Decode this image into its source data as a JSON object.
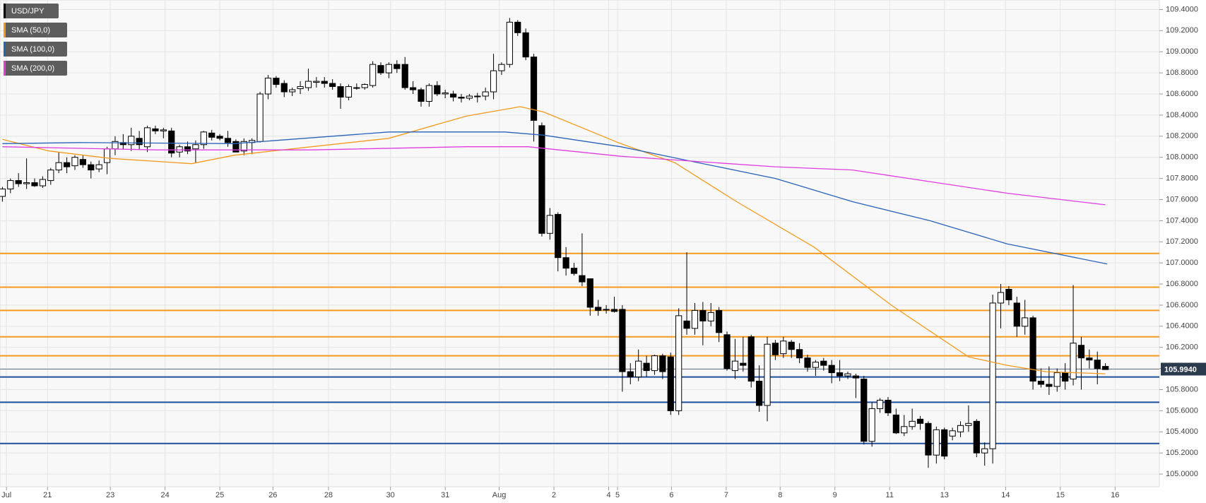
{
  "chart_data": {
    "type": "candlestick",
    "series": [
      {
        "name": "USD/JPY",
        "color": "#000000",
        "open": [
          107.63,
          107.7,
          107.78,
          107.75,
          107.76,
          107.73,
          107.78,
          107.88,
          107.95,
          107.92,
          107.98,
          107.93,
          107.89,
          107.95,
          108.08,
          108.14,
          108.12,
          108.18,
          108.1,
          108.27,
          108.25,
          108.25,
          108.05,
          108.1,
          108.08,
          108.12,
          108.23,
          108.2,
          108.18,
          108.15,
          108.06,
          108.14,
          108.15,
          108.6,
          108.75,
          108.7,
          108.62,
          108.65,
          108.66,
          108.71,
          108.72,
          108.7,
          108.67,
          108.57,
          108.66,
          108.66,
          108.68,
          108.87,
          108.8,
          108.88,
          108.88,
          108.66,
          108.64,
          108.53,
          108.68,
          108.6,
          108.6,
          108.57,
          108.56,
          108.58,
          108.58,
          108.62,
          108.82,
          108.88,
          109.28,
          109.18,
          108.95,
          108.3,
          107.28,
          107.46,
          107.05,
          106.95,
          106.88,
          106.85,
          106.58,
          106.56,
          106.56,
          106.56,
          105.97,
          105.92,
          106.05,
          105.98,
          106.12,
          106.11,
          105.6,
          106.45,
          106.38,
          106.55,
          106.45,
          106.55,
          106.32,
          105.98,
          106.05,
          106.3,
          105.88,
          105.65,
          106.24,
          106.14,
          106.25,
          106.18,
          106.1,
          106.01,
          106.07,
          106.03,
          105.96,
          105.93,
          105.93,
          105.9,
          105.31,
          105.62,
          105.7,
          105.56,
          105.39,
          105.45,
          105.52,
          105.48,
          105.18,
          105.42,
          105.36,
          105.4,
          105.46,
          105.5,
          105.2,
          105.24,
          106.62,
          106.75,
          106.62,
          106.4,
          106.48,
          105.88,
          105.85,
          105.83,
          105.96,
          105.9,
          106.22,
          106.1,
          106.08,
          106.02
        ],
        "high": [
          107.72,
          107.8,
          107.85,
          107.99,
          107.8,
          107.82,
          107.9,
          108.05,
          108.0,
          108.02,
          108.02,
          107.96,
          107.97,
          108.1,
          108.2,
          108.22,
          108.28,
          108.25,
          108.3,
          108.3,
          108.28,
          108.28,
          108.12,
          108.15,
          108.16,
          108.25,
          108.26,
          108.22,
          108.25,
          108.17,
          108.18,
          108.18,
          108.62,
          108.78,
          108.77,
          108.73,
          108.66,
          108.72,
          108.84,
          108.76,
          108.76,
          108.74,
          108.7,
          108.69,
          108.7,
          108.7,
          108.91,
          108.9,
          108.9,
          108.92,
          108.95,
          108.72,
          108.66,
          108.7,
          108.72,
          108.64,
          108.63,
          108.6,
          108.6,
          108.61,
          108.66,
          108.98,
          108.9,
          109.32,
          109.3,
          109.22,
          108.98,
          108.33,
          107.52,
          107.48,
          107.15,
          107.0,
          107.28,
          106.85,
          106.65,
          106.6,
          106.68,
          106.6,
          106.05,
          106.18,
          106.12,
          106.13,
          106.14,
          106.15,
          106.57,
          107.1,
          106.62,
          106.63,
          106.62,
          106.58,
          106.35,
          106.28,
          106.3,
          106.32,
          106.03,
          106.3,
          106.27,
          106.3,
          106.27,
          106.24,
          106.13,
          106.08,
          106.1,
          106.08,
          106.08,
          105.97,
          105.95,
          105.93,
          105.68,
          105.72,
          105.73,
          105.62,
          105.56,
          105.62,
          105.55,
          105.5,
          105.45,
          105.44,
          105.44,
          105.5,
          105.65,
          105.52,
          105.3,
          106.7,
          106.8,
          106.78,
          106.68,
          106.65,
          106.5,
          106.0,
          106.02,
          106.0,
          106.05,
          106.79,
          106.3,
          106.18,
          106.16,
          106.05
        ],
        "low": [
          107.58,
          107.66,
          107.72,
          107.7,
          107.72,
          107.71,
          107.74,
          107.85,
          107.85,
          107.88,
          107.9,
          107.8,
          107.86,
          107.84,
          108.02,
          108.08,
          108.06,
          108.07,
          108.05,
          108.22,
          108.18,
          108.0,
          108.0,
          108.03,
          107.95,
          108.08,
          108.16,
          108.16,
          108.1,
          108.05,
          108.02,
          108.03,
          108.14,
          108.55,
          108.66,
          108.57,
          108.58,
          108.6,
          108.63,
          108.66,
          108.66,
          108.64,
          108.46,
          108.54,
          108.64,
          108.64,
          108.66,
          108.78,
          108.75,
          108.8,
          108.64,
          108.6,
          108.48,
          108.48,
          108.58,
          108.56,
          108.53,
          108.52,
          108.54,
          108.52,
          108.54,
          108.55,
          108.78,
          108.85,
          109.15,
          108.92,
          108.15,
          107.25,
          107.22,
          106.92,
          106.88,
          106.88,
          106.78,
          106.5,
          106.5,
          106.52,
          106.53,
          105.78,
          105.85,
          105.88,
          105.92,
          105.94,
          105.9,
          105.56,
          105.56,
          106.32,
          106.32,
          106.22,
          106.4,
          106.25,
          105.98,
          105.9,
          105.97,
          105.82,
          105.59,
          105.5,
          106.08,
          106.1,
          106.1,
          106.05,
          105.97,
          105.93,
          105.98,
          105.86,
          105.88,
          105.9,
          105.72,
          105.28,
          105.26,
          105.58,
          105.55,
          105.38,
          105.36,
          105.42,
          105.42,
          105.06,
          105.1,
          105.14,
          105.32,
          105.35,
          105.4,
          105.16,
          105.08,
          105.1,
          106.38,
          106.6,
          106.3,
          106.32,
          105.8,
          105.82,
          105.75,
          105.78,
          105.8,
          105.84,
          105.8,
          106.0,
          105.85,
          105.99
        ],
        "close": [
          107.7,
          107.78,
          107.75,
          107.76,
          107.73,
          107.79,
          107.88,
          107.95,
          107.91,
          108.0,
          107.93,
          107.88,
          107.93,
          108.08,
          108.15,
          108.12,
          108.2,
          108.12,
          108.28,
          108.25,
          108.26,
          108.04,
          108.1,
          108.06,
          108.12,
          108.24,
          108.19,
          108.18,
          108.14,
          108.05,
          108.15,
          108.16,
          108.6,
          108.75,
          108.69,
          108.62,
          108.64,
          108.67,
          108.72,
          108.72,
          108.7,
          108.67,
          108.57,
          108.67,
          108.66,
          108.69,
          108.88,
          108.8,
          108.88,
          108.84,
          108.66,
          108.64,
          108.53,
          108.68,
          108.6,
          108.61,
          108.57,
          108.56,
          108.58,
          108.58,
          108.62,
          108.82,
          108.88,
          109.28,
          109.18,
          108.95,
          108.35,
          107.28,
          107.45,
          107.05,
          106.95,
          106.9,
          106.82,
          106.58,
          106.55,
          106.56,
          106.54,
          105.97,
          105.92,
          106.07,
          105.98,
          106.12,
          105.97,
          105.6,
          106.5,
          106.38,
          106.55,
          106.45,
          106.53,
          106.34,
          106.0,
          106.07,
          106.03,
          105.88,
          105.65,
          106.23,
          106.13,
          106.26,
          106.18,
          106.1,
          106.01,
          106.06,
          106.03,
          105.96,
          105.93,
          105.95,
          105.91,
          105.31,
          105.62,
          105.7,
          105.58,
          105.39,
          105.45,
          105.5,
          105.48,
          105.18,
          105.42,
          105.17,
          105.41,
          105.46,
          105.48,
          105.2,
          105.24,
          106.62,
          106.72,
          106.65,
          106.4,
          106.48,
          105.88,
          105.85,
          105.83,
          105.96,
          105.88,
          106.24,
          106.1,
          106.08,
          106.0,
          105.99
        ]
      }
    ],
    "overlays": [
      {
        "name": "SMA (50,0)",
        "color": "#f39a1e",
        "x": [
          0,
          5.8,
          13.4,
          23.5,
          28.8,
          38.4,
          48,
          57.6,
          64.3,
          67.2,
          76.8,
          83.5,
          91.2,
          100.8,
          110.4,
          120,
          124.8,
          129.6,
          137
        ],
        "values": [
          108.17,
          108.06,
          107.99,
          107.94,
          108.02,
          108.1,
          108.18,
          108.39,
          108.48,
          108.43,
          108.13,
          107.95,
          107.58,
          107.15,
          106.6,
          106.11,
          106.03,
          105.97,
          105.95
        ]
      },
      {
        "name": "SMA (100,0)",
        "color": "#2a62b8",
        "x": [
          0,
          9.6,
          28.8,
          48,
          62.4,
          67.2,
          76.8,
          86.4,
          96,
          105.6,
          115.2,
          124.8,
          137.2
        ],
        "values": [
          108.13,
          108.14,
          108.13,
          108.24,
          108.24,
          108.21,
          108.1,
          107.95,
          107.8,
          107.58,
          107.4,
          107.18,
          106.99
        ]
      },
      {
        "name": "SMA (200,0)",
        "color": "#e03ce0",
        "x": [
          0,
          19.2,
          38.4,
          57.6,
          65.3,
          76.8,
          96,
          105.6,
          115.2,
          124.8,
          137
        ],
        "values": [
          108.1,
          108.07,
          108.07,
          108.1,
          108.1,
          108.01,
          107.91,
          107.88,
          107.77,
          107.66,
          107.55
        ]
      }
    ],
    "levels": [
      {
        "color": "#f39a1e",
        "values": [
          107.09,
          106.77,
          106.55,
          106.3,
          106.12
        ]
      },
      {
        "color": "#1f4e9c",
        "values": [
          105.92,
          105.68,
          105.29
        ]
      }
    ],
    "last_price": {
      "value": 105.994,
      "label": "105.9940"
    },
    "ylim": [
      104.88,
      109.49
    ],
    "yticks": [
      {
        "value": 105.0,
        "label": "105.0000"
      },
      {
        "value": 105.2,
        "label": "105.2000"
      },
      {
        "value": 105.4,
        "label": "105.4000"
      },
      {
        "value": 105.6,
        "label": "105.6000"
      },
      {
        "value": 105.8,
        "label": "105.8000"
      },
      {
        "value": 106.0,
        "label": "106.0000"
      },
      {
        "value": 106.2,
        "label": "106.2000"
      },
      {
        "value": 106.4,
        "label": "106.4000"
      },
      {
        "value": 106.6,
        "label": "106.6000"
      },
      {
        "value": 106.8,
        "label": "106.8000"
      },
      {
        "value": 107.0,
        "label": "107.0000"
      },
      {
        "value": 107.2,
        "label": "107.2000"
      },
      {
        "value": 107.4,
        "label": "107.4000"
      },
      {
        "value": 107.6,
        "label": "107.6000"
      },
      {
        "value": 107.8,
        "label": "107.8000"
      },
      {
        "value": 108.0,
        "label": "108.0000"
      },
      {
        "value": 108.2,
        "label": "108.2000"
      },
      {
        "value": 108.4,
        "label": "108.4000"
      },
      {
        "value": 108.6,
        "label": "108.6000"
      },
      {
        "value": 108.8,
        "label": "108.8000"
      },
      {
        "value": 109.0,
        "label": "109.0000"
      },
      {
        "value": 109.2,
        "label": "109.2000"
      },
      {
        "value": 109.4,
        "label": "109.4000"
      }
    ],
    "xlim": [
      -0.3,
      143.7
    ],
    "xticks": [
      {
        "value": 0.5,
        "label": "Jul"
      },
      {
        "value": 5.6,
        "label": "21"
      },
      {
        "value": 13.4,
        "label": "23"
      },
      {
        "value": 20.2,
        "label": "24"
      },
      {
        "value": 27,
        "label": "25"
      },
      {
        "value": 33.6,
        "label": "26"
      },
      {
        "value": 40.5,
        "label": "28"
      },
      {
        "value": 48.2,
        "label": "30"
      },
      {
        "value": 55,
        "label": "31"
      },
      {
        "value": 61.7,
        "label": "Aug"
      },
      {
        "value": 68.5,
        "label": "2"
      },
      {
        "value": 75.3,
        "label": "4"
      },
      {
        "value": 76.4,
        "label": "5"
      },
      {
        "value": 83.1,
        "label": "6"
      },
      {
        "value": 89.9,
        "label": "7"
      },
      {
        "value": 96.6,
        "label": "8"
      },
      {
        "value": 103.4,
        "label": "9"
      },
      {
        "value": 110.2,
        "label": "11"
      },
      {
        "value": 117,
        "label": "13"
      },
      {
        "value": 124.6,
        "label": "14"
      },
      {
        "value": 131.4,
        "label": "15"
      },
      {
        "value": 138.2,
        "label": "16"
      }
    ],
    "grid": true
  }
}
